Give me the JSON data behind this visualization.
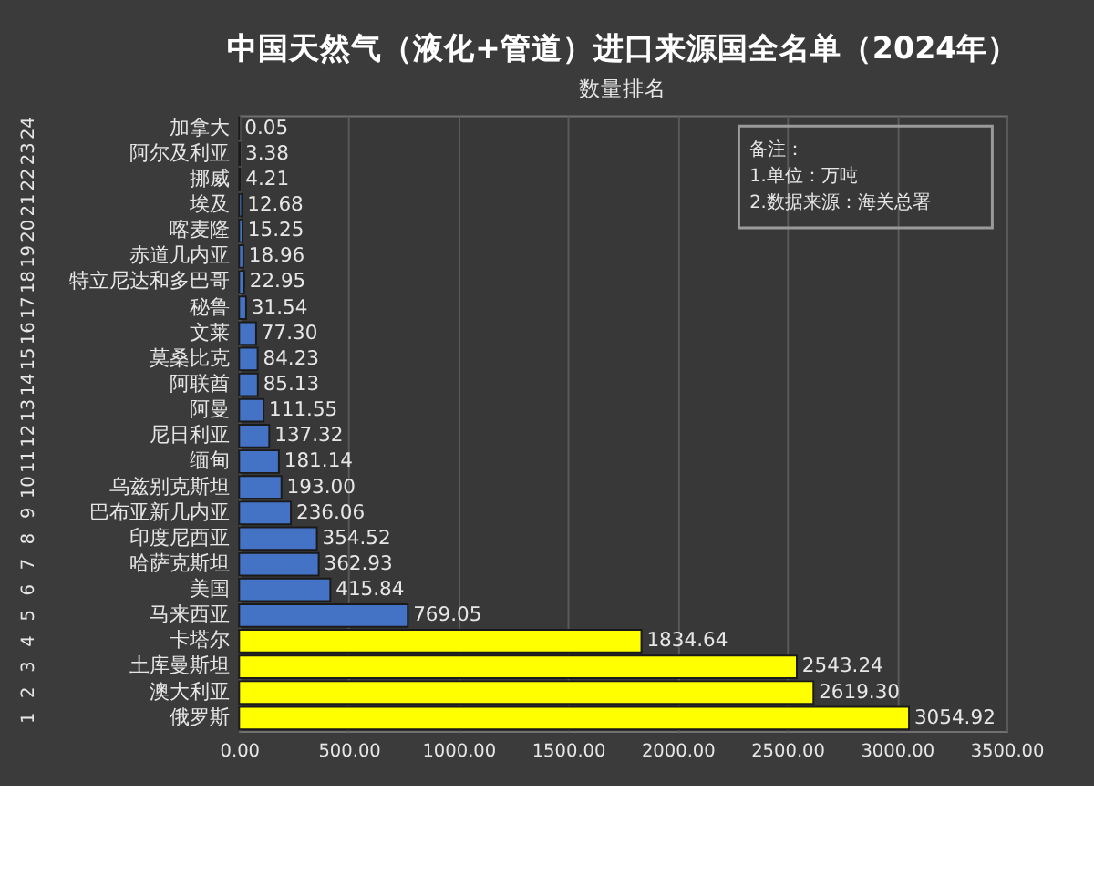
{
  "chart_data": {
    "type": "bar",
    "orientation": "horizontal",
    "title": "中国天然气（液化+管道）进口来源国全名单（2024年）",
    "subtitle": "数量排名",
    "categories": [
      "加拿大",
      "阿尔及利亚",
      "挪威",
      "埃及",
      "喀麦隆",
      "赤道几内亚",
      "特立尼达和多巴哥",
      "秘鲁",
      "文莱",
      "莫桑比克",
      "阿联酋",
      "阿曼",
      "尼日利亚",
      "缅甸",
      "乌兹别克斯坦",
      "巴布亚新几内亚",
      "印度尼西亚",
      "哈萨克斯坦",
      "美国",
      "马来西亚",
      "卡塔尔",
      "土库曼斯坦",
      "澳大利亚",
      "俄罗斯"
    ],
    "y2_categories": [
      "24",
      "23",
      "22",
      "21",
      "20",
      "19",
      "18",
      "17",
      "16",
      "15",
      "14",
      "13",
      "12",
      "11",
      "10",
      "9",
      "8",
      "7",
      "6",
      "5",
      "4",
      "3",
      "2",
      "1"
    ],
    "values": [
      0.05,
      3.38,
      4.21,
      12.68,
      15.25,
      18.96,
      22.95,
      31.54,
      77.3,
      84.23,
      85.13,
      111.55,
      137.32,
      181.14,
      193.0,
      236.06,
      354.52,
      362.93,
      415.84,
      769.05,
      1834.64,
      2543.24,
      2619.3,
      3054.92
    ],
    "value_labels": [
      "0.05",
      "3.38",
      "4.21",
      "12.68",
      "15.25",
      "18.96",
      "22.95",
      "31.54",
      "77.30",
      "84.23",
      "85.13",
      "111.55",
      "137.32",
      "181.14",
      "193.00",
      "236.06",
      "354.52",
      "362.93",
      "415.84",
      "769.05",
      "1834.64",
      "2543.24",
      "2619.30",
      "3054.92"
    ],
    "colors": [
      "#4472c4",
      "#4472c4",
      "#4472c4",
      "#4472c4",
      "#4472c4",
      "#4472c4",
      "#4472c4",
      "#4472c4",
      "#4472c4",
      "#4472c4",
      "#4472c4",
      "#4472c4",
      "#4472c4",
      "#4472c4",
      "#4472c4",
      "#4472c4",
      "#4472c4",
      "#4472c4",
      "#4472c4",
      "#4472c4",
      "#ffff00",
      "#ffff00",
      "#ffff00",
      "#ffff00"
    ],
    "xlim": [
      0,
      3500
    ],
    "xticks": [
      {
        "value": 0,
        "label": "0.00"
      },
      {
        "value": 500,
        "label": "500.00"
      },
      {
        "value": 1000,
        "label": "1000.00"
      },
      {
        "value": 1500,
        "label": "1500.00"
      },
      {
        "value": 2000,
        "label": "2000.00"
      },
      {
        "value": 2500,
        "label": "2500.00"
      },
      {
        "value": 3000,
        "label": "3000.00"
      },
      {
        "value": 3500,
        "label": "3500.00"
      }
    ],
    "grid": "x",
    "annotations": [
      "备注：",
      "1.单位：万吨",
      "2.数据来源：海关总署"
    ]
  }
}
